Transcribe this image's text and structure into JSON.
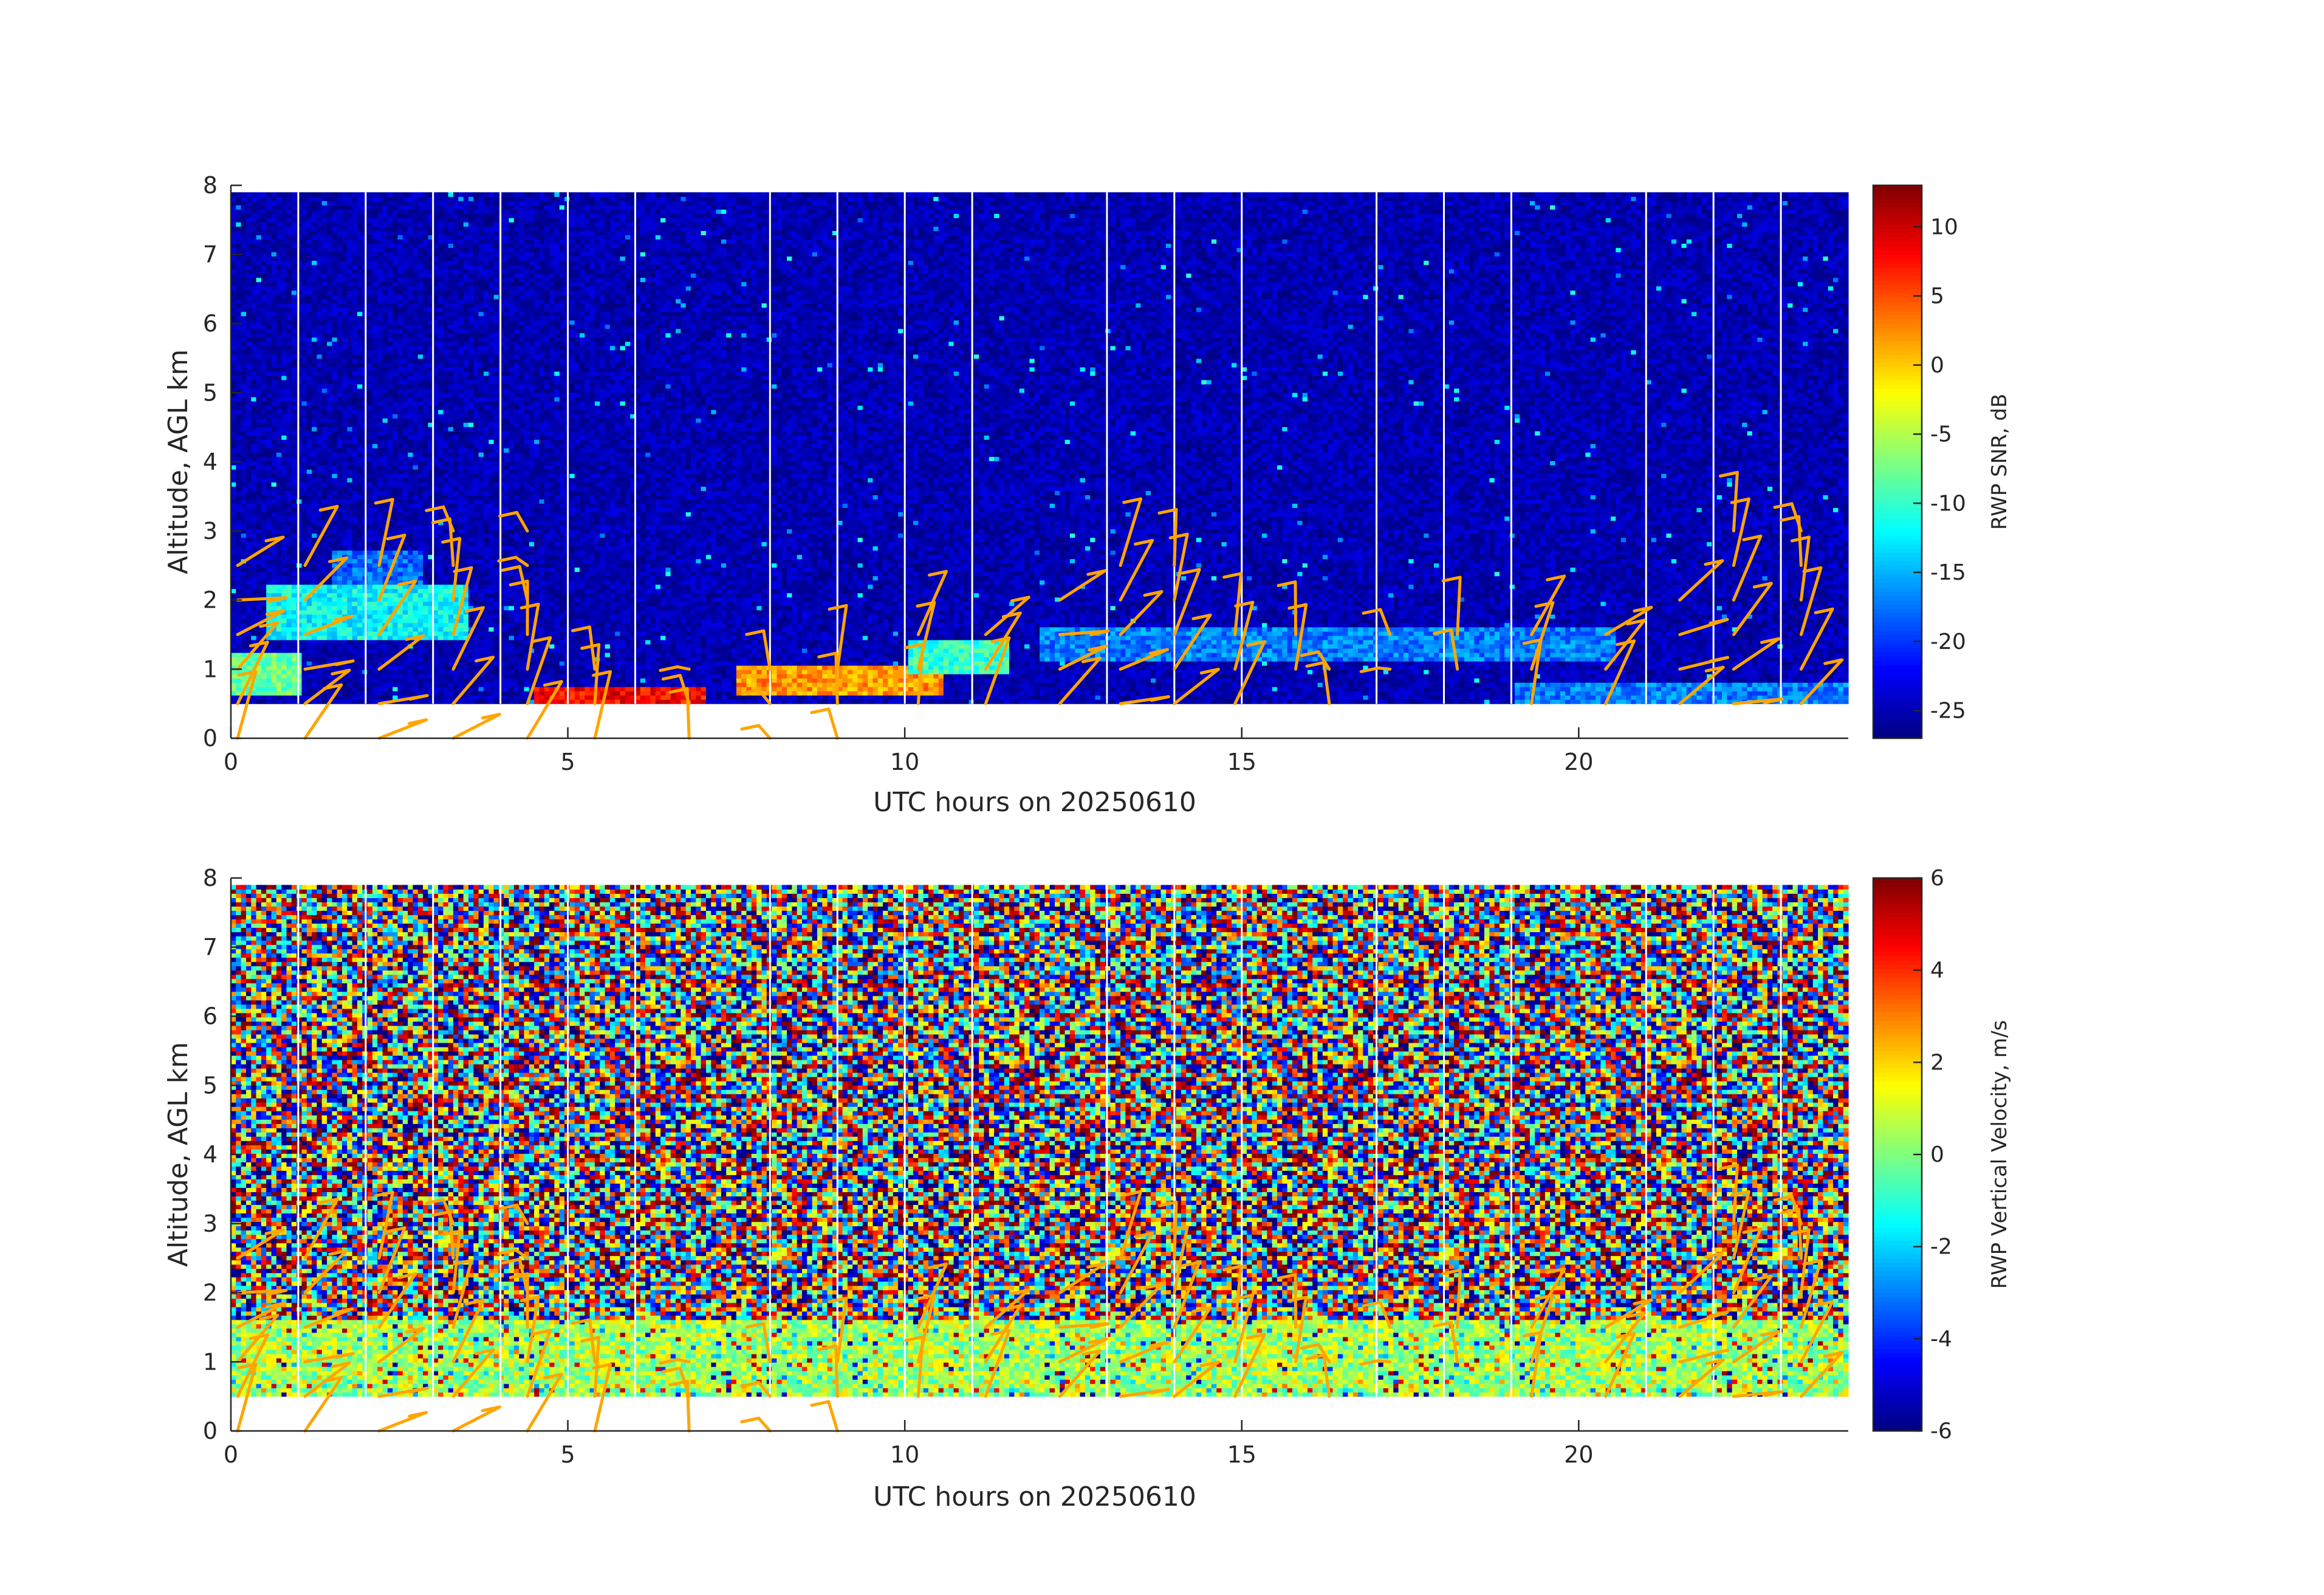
{
  "chart_data": [
    {
      "type": "heatmap",
      "title": "",
      "xlabel": "UTC hours on 20250610",
      "ylabel": "Altitude, AGL km",
      "xlim": [
        0,
        24
      ],
      "ylim": [
        0,
        8
      ],
      "xticks": [
        0,
        5,
        10,
        15,
        20
      ],
      "yticks": [
        0,
        1,
        2,
        3,
        4,
        5,
        6,
        7,
        8
      ],
      "colorbar": {
        "label": "RWP SNR, dB",
        "range": [
          -27,
          13
        ],
        "ticks": [
          10,
          5,
          0,
          -5,
          -10,
          -15,
          -20,
          -25
        ],
        "colormap": "jet"
      },
      "data_altitude_range_km": [
        0.5,
        7.9
      ],
      "background_value_db": -25,
      "hourly_gaps": [
        1,
        2,
        3,
        4,
        5,
        6,
        8,
        9,
        10,
        11,
        13,
        14,
        15,
        17,
        18,
        19,
        21,
        22,
        23
      ],
      "echo_layers": [
        {
          "x0": 0,
          "x1": 1,
          "y0": 0.6,
          "y1": 1.2,
          "value": -8
        },
        {
          "x0": 0.5,
          "x1": 3.5,
          "y0": 1.4,
          "y1": 2.2,
          "value": -12
        },
        {
          "x0": 1.5,
          "x1": 2.8,
          "y0": 2.2,
          "y1": 2.7,
          "value": -18
        },
        {
          "x0": 4.5,
          "x1": 7,
          "y0": 0.5,
          "y1": 0.7,
          "value": 8
        },
        {
          "x0": 7.5,
          "x1": 10.5,
          "y0": 0.6,
          "y1": 1.0,
          "value": 2
        },
        {
          "x0": 10,
          "x1": 11.5,
          "y0": 0.9,
          "y1": 1.4,
          "value": -10
        },
        {
          "x0": 12,
          "x1": 20.5,
          "y0": 1.1,
          "y1": 1.6,
          "value": -17
        },
        {
          "x0": 19,
          "x1": 24,
          "y0": 0.5,
          "y1": 0.8,
          "value": -17
        }
      ]
    },
    {
      "type": "heatmap",
      "title": "",
      "xlabel": "UTC hours on 20250610",
      "ylabel": "Altitude, AGL km",
      "xlim": [
        0,
        24
      ],
      "ylim": [
        0,
        8
      ],
      "xticks": [
        0,
        5,
        10,
        15,
        20
      ],
      "yticks": [
        0,
        1,
        2,
        3,
        4,
        5,
        6,
        7,
        8
      ],
      "colorbar": {
        "label": "RWP Vertical Velocity, m/s",
        "range": [
          -6,
          6
        ],
        "ticks": [
          6,
          4,
          2,
          0,
          -2,
          -4,
          -6
        ],
        "colormap": "jet"
      },
      "data_altitude_range_km": [
        0.5,
        7.9
      ],
      "hourly_gaps": [
        1,
        2,
        3,
        4,
        5,
        6,
        8,
        9,
        10,
        11,
        13,
        14,
        15,
        17,
        18,
        19,
        21,
        22,
        23
      ],
      "low_level_band": {
        "x0": 0,
        "x1": 24,
        "y0": 0.5,
        "y1": 1.6,
        "value_range": [
          -1,
          2
        ]
      }
    }
  ],
  "wind_barbs": {
    "color": "#FFA500",
    "columns": [
      {
        "t": 0.1,
        "alts": [
          0,
          0.5,
          1.0,
          1.5,
          2.0,
          2.5
        ]
      },
      {
        "t": 1.1,
        "alts": [
          0,
          0.5,
          1.0,
          1.5,
          2.0,
          2.5
        ]
      },
      {
        "t": 2.2,
        "alts": [
          0,
          0.5,
          1.0,
          1.5,
          2.0,
          2.5
        ]
      },
      {
        "t": 3.3,
        "alts": [
          0,
          0.5,
          1.0,
          1.5,
          2.0,
          2.5,
          3.0
        ]
      },
      {
        "t": 4.4,
        "alts": [
          0,
          0.5,
          1.0,
          1.5,
          2.0,
          2.5,
          3.0
        ]
      },
      {
        "t": 5.4,
        "alts": [
          0,
          0.5,
          1.0
        ]
      },
      {
        "t": 6.8,
        "alts": [
          0,
          0.5,
          1.0
        ]
      },
      {
        "t": 8.0,
        "alts": [
          0,
          0.5,
          1.0
        ]
      },
      {
        "t": 9.0,
        "alts": [
          0,
          0.5,
          1.0
        ]
      },
      {
        "t": 10.2,
        "alts": [
          0.5,
          1.0,
          1.5
        ]
      },
      {
        "t": 11.2,
        "alts": [
          0.5,
          1.0,
          1.5
        ]
      },
      {
        "t": 12.3,
        "alts": [
          0.5,
          1.0,
          1.5,
          2.0
        ]
      },
      {
        "t": 13.2,
        "alts": [
          0.5,
          1.0,
          1.5,
          2.0,
          2.5
        ]
      },
      {
        "t": 14.0,
        "alts": [
          0.5,
          1.0,
          1.5,
          2.0,
          2.5
        ]
      },
      {
        "t": 14.9,
        "alts": [
          0.5,
          1.0,
          1.5
        ]
      },
      {
        "t": 15.8,
        "alts": [
          1.0,
          1.5
        ]
      },
      {
        "t": 16.3,
        "alts": [
          0.5,
          1.0
        ]
      },
      {
        "t": 17.2,
        "alts": [
          1.0,
          1.5
        ]
      },
      {
        "t": 18.2,
        "alts": [
          1.0,
          1.5
        ]
      },
      {
        "t": 19.3,
        "alts": [
          0.5,
          1.0,
          1.5
        ]
      },
      {
        "t": 20.4,
        "alts": [
          0.5,
          1.0,
          1.5
        ]
      },
      {
        "t": 21.5,
        "alts": [
          0.5,
          1.0,
          1.5,
          2.0
        ]
      },
      {
        "t": 22.3,
        "alts": [
          0.5,
          1.0,
          1.5,
          2.0,
          2.5,
          3.0
        ]
      },
      {
        "t": 23.3,
        "alts": [
          0.5,
          1.0,
          1.5,
          2.0,
          2.5,
          3.0
        ]
      }
    ]
  }
}
